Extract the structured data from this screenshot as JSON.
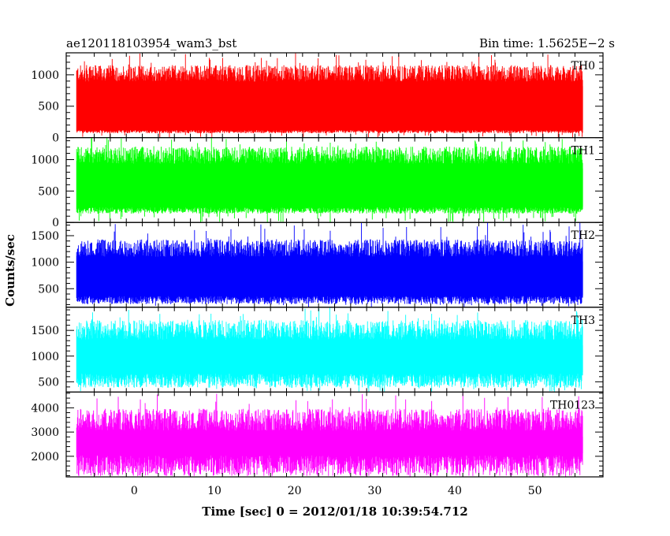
{
  "header": {
    "title": "ae120118103954_wam3_bst",
    "bin_time": "Bin time: 1.5625E−2 s"
  },
  "axes": {
    "xlabel": "Time [sec] 0 = 2012/01/18 10:39:54.712",
    "ylabel": "Counts/sec"
  },
  "chart_data": {
    "type": "line",
    "title": "ae120118103954_wam3_bst",
    "xlabel": "Time [sec] 0 = 2012/01/18 10:39:54.712",
    "ylabel": "Counts/sec",
    "xlim": [
      -8.5,
      58.5
    ],
    "data_x_range": [
      -7.2,
      56.0
    ],
    "x_ticks": [
      0,
      10,
      20,
      30,
      40,
      50
    ],
    "bin_time_s": 0.015625,
    "legend": "none",
    "grid": false,
    "panels": [
      {
        "name": "TH0",
        "color": "#ff0000",
        "ylim": [
          0,
          1350
        ],
        "y_ticks": [
          0,
          500,
          1000
        ],
        "typical_low": 100,
        "typical_high": 1050,
        "peak_max": 1350
      },
      {
        "name": "TH1",
        "color": "#00ff00",
        "ylim": [
          0,
          1350
        ],
        "y_ticks": [
          0,
          500,
          1000
        ],
        "typical_low": 200,
        "typical_high": 1100,
        "peak_max": 1350
      },
      {
        "name": "TH2",
        "color": "#0000ff",
        "ylim": [
          150,
          1750
        ],
        "y_ticks": [
          500,
          1000,
          1500
        ],
        "typical_low": 300,
        "typical_high": 1300,
        "peak_max": 1750
      },
      {
        "name": "TH3",
        "color": "#00ffff",
        "ylim": [
          300,
          1950
        ],
        "y_ticks": [
          500,
          1000,
          1500
        ],
        "typical_low": 550,
        "typical_high": 1550,
        "peak_max": 1950
      },
      {
        "name": "TH0123",
        "color": "#ff00ff",
        "ylim": [
          1150,
          4650
        ],
        "y_ticks": [
          2000,
          3000,
          4000
        ],
        "typical_low": 1700,
        "typical_high": 3600,
        "peak_max": 4650
      }
    ]
  }
}
